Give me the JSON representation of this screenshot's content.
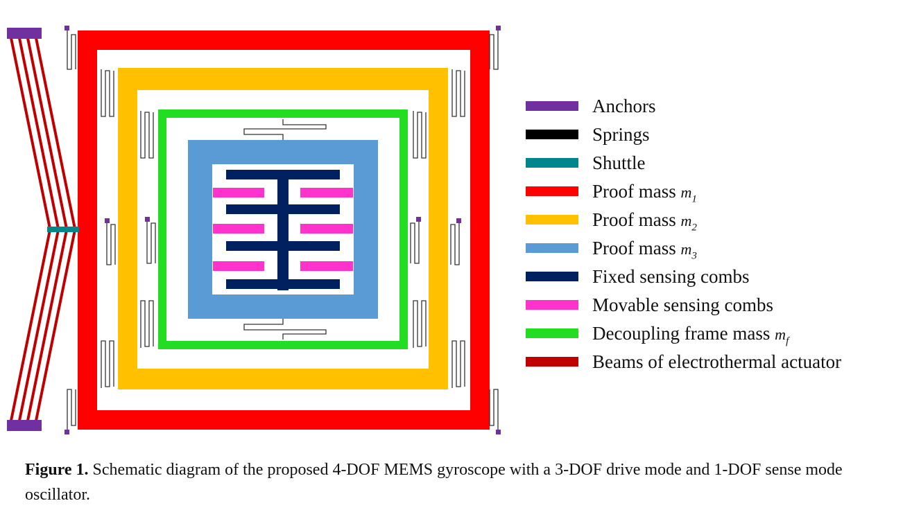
{
  "colors": {
    "anchor": "#7030a0",
    "spring": "#000000",
    "shuttle": "#00868b",
    "m1": "#ff0000",
    "m2": "#ffc000",
    "m3": "#5b9bd5",
    "fixed_comb": "#002060",
    "movable_comb": "#ff33cc",
    "frame": "#22dd22",
    "beam": "#c00000"
  },
  "legend": [
    {
      "label": "Anchors",
      "color": "#7030a0"
    },
    {
      "label": "Springs",
      "color": "#000000"
    },
    {
      "label": "Shuttle",
      "color": "#00868b"
    },
    {
      "label": "Proof mass ",
      "sym": "m",
      "sub": "1",
      "color": "#ff0000"
    },
    {
      "label": "Proof mass ",
      "sym": "m",
      "sub": "2",
      "color": "#ffc000"
    },
    {
      "label": "Proof mass ",
      "sym": "m",
      "sub": "3",
      "color": "#5b9bd5"
    },
    {
      "label": "Fixed sensing combs",
      "color": "#002060"
    },
    {
      "label": "Movable sensing combs",
      "color": "#ff33cc"
    },
    {
      "label": "Decoupling frame mass ",
      "sym": "m",
      "sub": "f",
      "color": "#22dd22"
    },
    {
      "label": "Beams of electrothermal actuator",
      "color": "#c00000"
    }
  ],
  "caption": {
    "label": "Figure 1.",
    "text": " Schematic diagram of the proposed 4-DOF MEMS gyroscope with a 3-DOF drive mode and 1-DOF sense mode oscillator."
  }
}
